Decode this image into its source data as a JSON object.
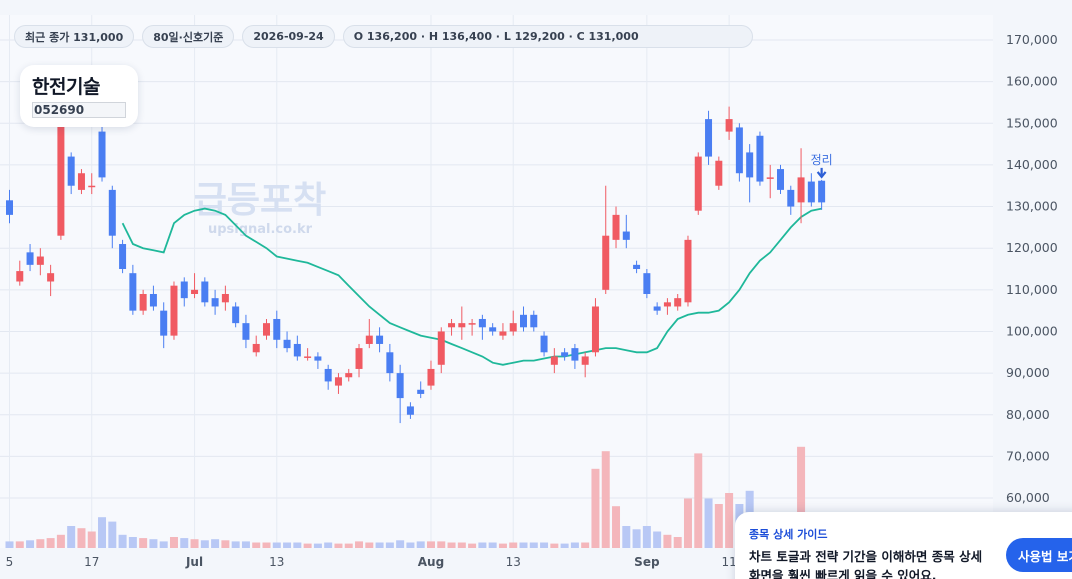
{
  "header": {
    "close_label": "최근 종가 131,000",
    "period_label": "80일·신호기준",
    "date_label": "2026-09-24",
    "ohlc_label": "O 136,200 · H 136,400 · L 129,200 · C 131,000"
  },
  "ticker": {
    "name": "한전기술",
    "code": "052690"
  },
  "watermark": {
    "title": "급등포착",
    "url": "upsignal.co.kr"
  },
  "guide": {
    "title": "종목 상세 가이드",
    "body": "차트 토글과 전략 기간을 이해하면 종목 상세 화면을 훨씬 빠르게 읽을 수 있어요.",
    "button_label": "사용법 보기"
  },
  "colors": {
    "up": "#f05a62",
    "down": "#4a7ef2",
    "ma": "#1fb89a",
    "up_vol": "#f4b6bb",
    "down_vol": "#b8c8f5"
  },
  "chart_data": {
    "type": "candlestick",
    "y_axis": {
      "ticks": [
        60000,
        70000,
        80000,
        90000,
        100000,
        110000,
        120000,
        130000,
        140000,
        150000,
        160000,
        170000
      ],
      "tick_labels": [
        "60,000",
        "70,000",
        "80,000",
        "90,000",
        "100,000",
        "110,000",
        "120,000",
        "130,000",
        "140,000",
        "150,000",
        "160,000",
        "170,000"
      ],
      "range": [
        48000,
        176000
      ]
    },
    "x_ticks": [
      {
        "label": "5",
        "index": 0
      },
      {
        "label": "17",
        "index": 8
      },
      {
        "label": "Jul",
        "index": 18
      },
      {
        "label": "13",
        "index": 26
      },
      {
        "label": "Aug",
        "index": 41
      },
      {
        "label": "13",
        "index": 49
      },
      {
        "label": "Sep",
        "index": 62
      },
      {
        "label": "11",
        "index": 70
      }
    ],
    "annotation": {
      "label": "정리",
      "index": 79
    },
    "grid": true,
    "candles": [
      [
        131500,
        128000,
        134000,
        126000
      ],
      [
        112000,
        114500,
        117000,
        111000
      ],
      [
        119000,
        116000,
        121000,
        114500
      ],
      [
        116000,
        118000,
        120000,
        113500
      ],
      [
        112000,
        114000,
        116000,
        108500
      ],
      [
        123000,
        153000,
        155000,
        122000
      ],
      [
        142000,
        135000,
        143000,
        133000
      ],
      [
        134000,
        138000,
        139000,
        133000
      ],
      [
        135000,
        135000,
        138000,
        133000
      ],
      [
        148000,
        137000,
        152000,
        136000
      ],
      [
        134000,
        123000,
        135000,
        120000
      ],
      [
        121000,
        115000,
        122000,
        114000
      ],
      [
        114000,
        105000,
        116000,
        104000
      ],
      [
        105000,
        109000,
        110000,
        104000
      ],
      [
        109000,
        106000,
        111000,
        105000
      ],
      [
        105000,
        99000,
        107000,
        96000
      ],
      [
        99000,
        111000,
        112000,
        98000
      ],
      [
        112000,
        108000,
        113000,
        106000
      ],
      [
        109000,
        110000,
        114000,
        108000
      ],
      [
        112000,
        107000,
        113000,
        106000
      ],
      [
        108000,
        106000,
        110000,
        104000
      ],
      [
        107000,
        109000,
        111000,
        105000
      ],
      [
        106000,
        102000,
        107000,
        101000
      ],
      [
        102000,
        98000,
        104000,
        96000
      ],
      [
        95000,
        97000,
        99000,
        94000
      ],
      [
        99000,
        102000,
        103000,
        98000
      ],
      [
        103000,
        98000,
        105000,
        96000
      ],
      [
        98000,
        96000,
        100000,
        95000
      ],
      [
        97000,
        94000,
        99000,
        93000
      ],
      [
        94000,
        94000,
        96000,
        93000
      ],
      [
        94000,
        93000,
        95000,
        91000
      ],
      [
        91000,
        88000,
        92000,
        86000
      ],
      [
        87000,
        89000,
        90000,
        85000
      ],
      [
        89000,
        90000,
        91000,
        88000
      ],
      [
        91000,
        96000,
        97000,
        89000
      ],
      [
        97000,
        99000,
        103000,
        96000
      ],
      [
        99000,
        97000,
        101000,
        95000
      ],
      [
        95000,
        90000,
        97000,
        88000
      ],
      [
        90000,
        84000,
        92000,
        78000
      ],
      [
        82000,
        80000,
        83000,
        79000
      ],
      [
        86000,
        85000,
        88000,
        84000
      ],
      [
        87000,
        91000,
        93000,
        86000
      ],
      [
        92000,
        100000,
        101000,
        90000
      ],
      [
        101000,
        102000,
        103000,
        99000
      ],
      [
        101000,
        102000,
        106000,
        98000
      ],
      [
        102000,
        102000,
        103000,
        99000
      ],
      [
        103000,
        101000,
        104000,
        98000
      ],
      [
        101000,
        100000,
        102000,
        99000
      ],
      [
        99000,
        100000,
        102000,
        98000
      ],
      [
        100000,
        102000,
        105000,
        99000
      ],
      [
        104000,
        101000,
        106000,
        100000
      ],
      [
        104000,
        101000,
        105000,
        100000
      ],
      [
        99000,
        95000,
        100000,
        94000
      ],
      [
        92000,
        94000,
        96000,
        90000
      ],
      [
        95000,
        94000,
        96000,
        93000
      ],
      [
        96000,
        93000,
        97000,
        91000
      ],
      [
        92000,
        94000,
        95000,
        89000
      ],
      [
        95000,
        106000,
        108000,
        94000
      ],
      [
        110000,
        123000,
        135000,
        109000
      ],
      [
        122000,
        128000,
        130000,
        120000
      ],
      [
        124000,
        122000,
        128000,
        120000
      ],
      [
        116000,
        115000,
        117000,
        114000
      ],
      [
        114000,
        109000,
        115000,
        108000
      ],
      [
        106000,
        105000,
        107000,
        104000
      ],
      [
        106000,
        107000,
        108000,
        104000
      ],
      [
        106000,
        108000,
        109000,
        105000
      ],
      [
        107000,
        122000,
        123000,
        106000
      ],
      [
        129000,
        142000,
        143000,
        128000
      ],
      [
        151000,
        142000,
        153000,
        140000
      ],
      [
        135000,
        141000,
        142000,
        134000
      ],
      [
        148000,
        151000,
        154000,
        146000
      ],
      [
        149000,
        138000,
        150000,
        136000
      ],
      [
        143000,
        137000,
        145000,
        131000
      ],
      [
        147000,
        136000,
        148000,
        135000
      ],
      [
        137000,
        137000,
        140000,
        132000
      ],
      [
        139000,
        134000,
        140000,
        133000
      ],
      [
        134000,
        130000,
        135000,
        128000
      ],
      [
        131000,
        137000,
        144000,
        126000
      ],
      [
        136000,
        131000,
        138000,
        130000
      ],
      [
        136200,
        131000,
        136400,
        129200
      ]
    ],
    "ma_series": [
      126000,
      121000,
      120000,
      119500,
      119000,
      126000,
      128000,
      129000,
      129500,
      129000,
      128000,
      125500,
      123000,
      121500,
      120000,
      118000,
      117500,
      117000,
      116500,
      115500,
      114500,
      113500,
      111000,
      108500,
      106000,
      104000,
      102000,
      101000,
      100000,
      99000,
      98500,
      98000,
      97000,
      96000,
      95000,
      94000,
      92500,
      92000,
      92500,
      93000,
      93000,
      93500,
      94000,
      94000,
      94500,
      95000,
      95500,
      96000,
      96000,
      95500,
      95000,
      95000,
      96000,
      100000,
      103000,
      104000,
      104500,
      104500,
      105000,
      107000,
      110000,
      114000,
      117000,
      119000,
      122000,
      125000,
      127500,
      129000,
      129500
    ],
    "volume_ratio": [
      0.06,
      0.06,
      0.07,
      0.08,
      0.09,
      0.12,
      0.2,
      0.18,
      0.15,
      0.28,
      0.24,
      0.12,
      0.1,
      0.09,
      0.08,
      0.06,
      0.1,
      0.09,
      0.08,
      0.07,
      0.08,
      0.07,
      0.06,
      0.06,
      0.05,
      0.05,
      0.05,
      0.05,
      0.05,
      0.04,
      0.04,
      0.05,
      0.04,
      0.04,
      0.06,
      0.05,
      0.05,
      0.05,
      0.07,
      0.05,
      0.06,
      0.06,
      0.06,
      0.05,
      0.05,
      0.04,
      0.05,
      0.05,
      0.04,
      0.05,
      0.05,
      0.05,
      0.05,
      0.04,
      0.04,
      0.05,
      0.05,
      0.72,
      0.88,
      0.38,
      0.2,
      0.17,
      0.2,
      0.15,
      0.12,
      0.1,
      0.45,
      0.86,
      0.45,
      0.4,
      0.5,
      0.4,
      0.52,
      0.3,
      0.3,
      0.2,
      0.15,
      0.92,
      0.1,
      0.1
    ]
  }
}
